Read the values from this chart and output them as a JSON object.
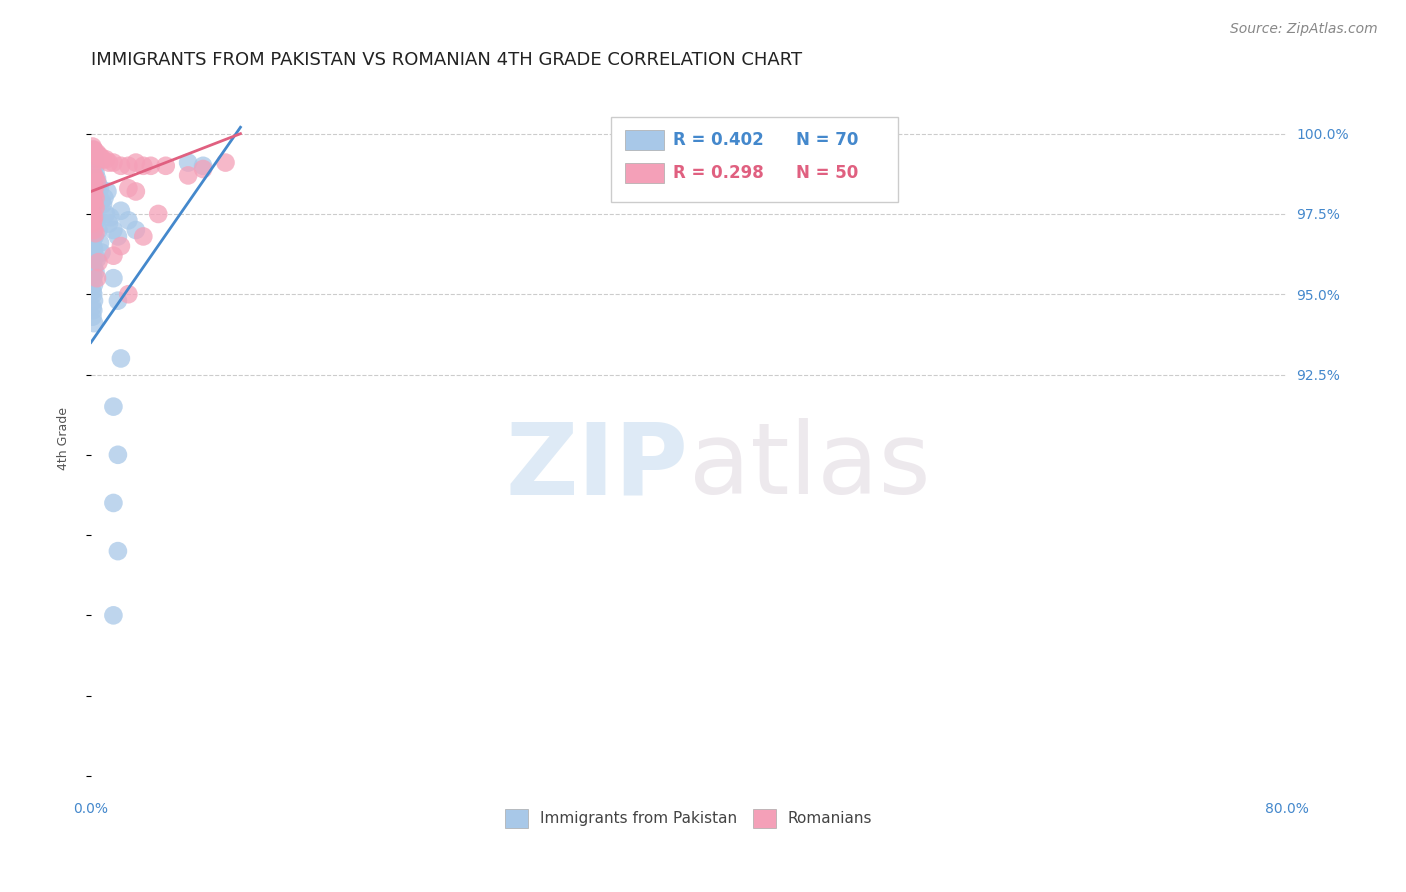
{
  "title": "IMMIGRANTS FROM PAKISTAN VS ROMANIAN 4TH GRADE CORRELATION CHART",
  "source": "Source: ZipAtlas.com",
  "ylabel": "4th Grade",
  "xlim": [
    0.0,
    80.0
  ],
  "ylim": [
    79.5,
    101.5
  ],
  "blue_color": "#a8c8e8",
  "pink_color": "#f4a0b8",
  "blue_line_color": "#4488cc",
  "pink_line_color": "#e06080",
  "blue_scatter": [
    [
      0.1,
      99.5
    ],
    [
      0.15,
      99.3
    ],
    [
      0.2,
      99.4
    ],
    [
      0.25,
      99.2
    ],
    [
      0.3,
      99.0
    ],
    [
      0.1,
      98.9
    ],
    [
      0.2,
      98.7
    ],
    [
      0.3,
      98.8
    ],
    [
      0.15,
      98.5
    ],
    [
      0.4,
      98.6
    ],
    [
      0.5,
      98.4
    ],
    [
      0.35,
      98.3
    ],
    [
      0.1,
      98.1
    ],
    [
      0.2,
      98.0
    ],
    [
      0.25,
      97.9
    ],
    [
      0.1,
      97.8
    ],
    [
      0.15,
      97.6
    ],
    [
      0.2,
      97.5
    ],
    [
      0.3,
      97.4
    ],
    [
      0.1,
      97.2
    ],
    [
      0.15,
      97.1
    ],
    [
      0.2,
      97.0
    ],
    [
      0.1,
      96.9
    ],
    [
      0.25,
      96.8
    ],
    [
      0.1,
      96.7
    ],
    [
      0.15,
      96.5
    ],
    [
      0.2,
      96.4
    ],
    [
      0.1,
      96.2
    ],
    [
      0.15,
      96.0
    ],
    [
      0.2,
      95.8
    ],
    [
      0.1,
      95.6
    ],
    [
      0.15,
      95.5
    ],
    [
      0.2,
      95.3
    ],
    [
      0.1,
      95.1
    ],
    [
      0.15,
      95.0
    ],
    [
      0.2,
      94.8
    ],
    [
      0.1,
      94.6
    ],
    [
      0.15,
      94.5
    ],
    [
      0.1,
      94.3
    ],
    [
      0.2,
      94.1
    ],
    [
      0.3,
      97.7
    ],
    [
      0.4,
      97.3
    ],
    [
      0.5,
      97.0
    ],
    [
      0.6,
      96.6
    ],
    [
      0.7,
      96.3
    ],
    [
      0.8,
      97.8
    ],
    [
      1.0,
      97.5
    ],
    [
      1.2,
      97.2
    ],
    [
      1.5,
      97.0
    ],
    [
      1.8,
      96.8
    ],
    [
      2.0,
      97.6
    ],
    [
      2.5,
      97.3
    ],
    [
      3.0,
      97.0
    ],
    [
      0.9,
      98.0
    ],
    [
      1.1,
      98.2
    ],
    [
      0.6,
      98.3
    ],
    [
      0.7,
      97.9
    ],
    [
      1.3,
      97.4
    ],
    [
      0.4,
      96.1
    ],
    [
      0.3,
      95.7
    ],
    [
      1.5,
      95.5
    ],
    [
      1.8,
      94.8
    ],
    [
      2.0,
      93.0
    ],
    [
      1.5,
      91.5
    ],
    [
      1.8,
      90.0
    ],
    [
      1.5,
      88.5
    ],
    [
      1.8,
      87.0
    ],
    [
      1.5,
      85.0
    ],
    [
      6.5,
      99.1
    ],
    [
      7.5,
      99.0
    ]
  ],
  "pink_scatter": [
    [
      0.1,
      99.6
    ],
    [
      0.2,
      99.5
    ],
    [
      0.3,
      99.4
    ],
    [
      0.4,
      99.4
    ],
    [
      0.5,
      99.3
    ],
    [
      0.6,
      99.3
    ],
    [
      0.8,
      99.2
    ],
    [
      1.0,
      99.2
    ],
    [
      1.2,
      99.1
    ],
    [
      1.5,
      99.1
    ],
    [
      2.0,
      99.0
    ],
    [
      2.5,
      99.0
    ],
    [
      3.0,
      99.1
    ],
    [
      3.5,
      99.0
    ],
    [
      4.0,
      99.0
    ],
    [
      5.0,
      99.0
    ],
    [
      0.15,
      99.5
    ],
    [
      0.25,
      99.4
    ],
    [
      0.35,
      99.3
    ],
    [
      0.45,
      99.2
    ],
    [
      0.1,
      98.8
    ],
    [
      0.2,
      98.7
    ],
    [
      0.3,
      98.6
    ],
    [
      0.4,
      98.5
    ],
    [
      0.15,
      98.4
    ],
    [
      0.25,
      98.3
    ],
    [
      0.1,
      98.2
    ],
    [
      0.2,
      98.1
    ],
    [
      0.3,
      98.0
    ],
    [
      0.1,
      97.9
    ],
    [
      0.2,
      97.8
    ],
    [
      0.3,
      97.7
    ],
    [
      0.1,
      97.5
    ],
    [
      0.2,
      97.4
    ],
    [
      0.15,
      97.3
    ],
    [
      0.1,
      97.2
    ],
    [
      0.2,
      97.0
    ],
    [
      0.3,
      96.9
    ],
    [
      2.5,
      98.3
    ],
    [
      3.0,
      98.2
    ],
    [
      6.5,
      98.7
    ],
    [
      9.0,
      99.1
    ],
    [
      7.5,
      98.9
    ],
    [
      4.5,
      97.5
    ],
    [
      3.5,
      96.8
    ],
    [
      2.5,
      95.0
    ],
    [
      2.0,
      96.5
    ],
    [
      0.5,
      96.0
    ],
    [
      0.4,
      95.5
    ],
    [
      1.5,
      96.2
    ]
  ],
  "blue_trendline_x": [
    0.0,
    10.0
  ],
  "blue_trendline_y": [
    93.5,
    100.2
  ],
  "pink_trendline_x": [
    0.0,
    10.0
  ],
  "pink_trendline_y": [
    98.2,
    100.0
  ],
  "ytick_right_values": [
    100.0,
    97.5,
    95.0,
    92.5
  ],
  "ytick_right_labels": [
    "100.0%",
    "97.5%",
    "95.0%",
    "92.5%"
  ],
  "xtick_values": [
    0,
    20,
    40,
    60,
    80
  ],
  "xtick_labels": [
    "0.0%",
    "",
    "",
    "",
    "80.0%"
  ],
  "watermark_zip": "ZIP",
  "watermark_atlas": "atlas",
  "background_color": "#ffffff",
  "title_fontsize": 13,
  "axis_label_fontsize": 9,
  "tick_fontsize": 10,
  "source_fontsize": 10,
  "grid_color": "#cccccc",
  "legend_blue_R": "R = 0.402",
  "legend_blue_N": "N = 70",
  "legend_pink_R": "R = 0.298",
  "legend_pink_N": "N = 50"
}
